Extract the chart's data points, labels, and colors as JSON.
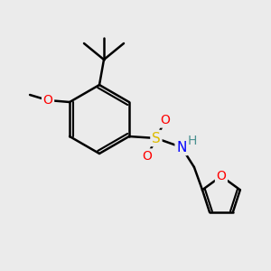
{
  "bg_color": "#ebebeb",
  "bond_color": "#000000",
  "line_width": 1.8,
  "atom_colors": {
    "O": "#ff0000",
    "S": "#ddbb00",
    "N": "#0000ff",
    "H": "#4a9090",
    "C": "#000000"
  },
  "figsize": [
    3.0,
    3.0
  ],
  "dpi": 100,
  "xlim": [
    0,
    300
  ],
  "ylim": [
    0,
    300
  ]
}
